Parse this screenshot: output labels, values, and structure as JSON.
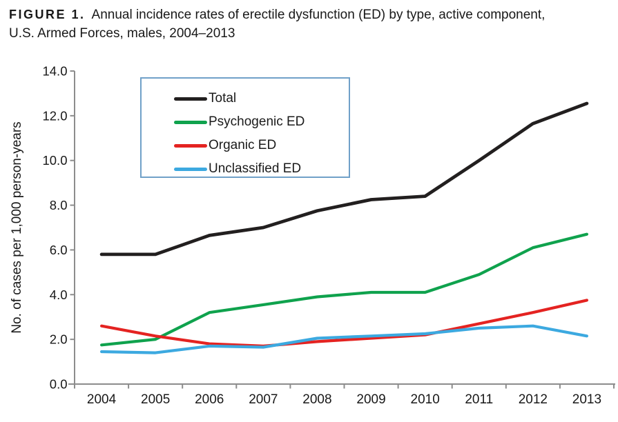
{
  "title": {
    "label": "FIGURE 1.",
    "line1": "Annual incidence rates of erectile dysfunction (ED) by type, active component,",
    "line2": "U.S. Armed Forces, males, 2004–2013"
  },
  "chart_data": {
    "type": "line",
    "title": "FIGURE 1. Annual incidence rates of erectile dysfunction (ED) by type, active component, U.S. Armed Forces, males, 2004–2013",
    "xlabel": "",
    "ylabel": "No. of cases per 1,000 person-years",
    "ylim": [
      0,
      14
    ],
    "ytick_step": 2,
    "ytick_labels": [
      "0.0",
      "2.0",
      "4.0",
      "6.0",
      "8.0",
      "10.0",
      "12.0",
      "14.0"
    ],
    "grid": "off",
    "legend_position": "upper-left-inside",
    "categories": [
      "2004",
      "2005",
      "2006",
      "2007",
      "2008",
      "2009",
      "2010",
      "2011",
      "2012",
      "2013"
    ],
    "series": [
      {
        "name": "Total",
        "color": "#221F1F",
        "values": [
          5.8,
          5.8,
          6.65,
          7.0,
          7.75,
          8.25,
          8.4,
          10.0,
          11.65,
          12.55
        ]
      },
      {
        "name": "Psychogenic ED",
        "color": "#0FA24D",
        "values": [
          1.75,
          2.0,
          3.2,
          3.55,
          3.9,
          4.1,
          4.1,
          4.9,
          6.1,
          6.7
        ]
      },
      {
        "name": "Organic ED",
        "color": "#E42321",
        "values": [
          2.6,
          2.15,
          1.8,
          1.7,
          1.9,
          2.05,
          2.2,
          2.7,
          3.2,
          3.75
        ]
      },
      {
        "name": "Unclassified ED",
        "color": "#3CA9E0",
        "values": [
          1.45,
          1.4,
          1.7,
          1.65,
          2.05,
          2.15,
          2.25,
          2.5,
          2.6,
          2.15
        ]
      }
    ],
    "axis_color": "#8C8C8C",
    "text_color": "#181818",
    "legend_border_color": "#6FA0C8"
  }
}
